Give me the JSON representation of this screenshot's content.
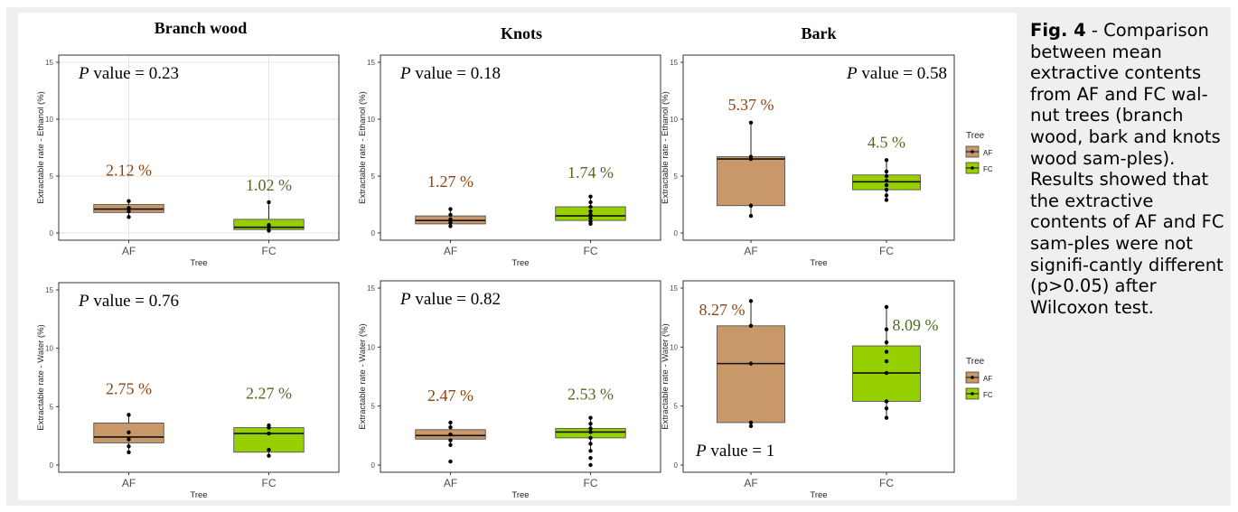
{
  "caption": {
    "label": "Fig. 4",
    "text": " - Comparison between mean extractive contents from AF and FC wal-nut trees (branch wood, bark and knots wood sam-ples). Results showed that the extractive contents of AF and FC sam-ples were not signifi-cantly different (p>0.05) after Wilcoxon test."
  },
  "colors": {
    "AF": "#c8976a",
    "FC": "#97d000",
    "label_AF": "#8b4513",
    "label_FC": "#4e6b1e"
  },
  "chart_data": [
    {
      "type": "box",
      "title": "Branch wood",
      "ylabel": "Extractable rate - Ethanol (%)",
      "xlabel": "Tree",
      "categories": [
        "AF",
        "FC"
      ],
      "ylim": [
        0,
        15
      ],
      "yticks": [
        0,
        5,
        10,
        15
      ],
      "grid": true,
      "p_value_label": "P",
      "p_value_text": " value = 0.23",
      "p_position": "top-left",
      "series": [
        {
          "name": "AF",
          "min": 1.4,
          "q1": 1.8,
          "median": 2.1,
          "q3": 2.5,
          "max": 2.8,
          "points": [
            1.4,
            1.9,
            2.2,
            2.8
          ],
          "mean_label": "2.12 %"
        },
        {
          "name": "FC",
          "min": 0.2,
          "q1": 0.3,
          "median": 0.5,
          "q3": 1.2,
          "max": 2.7,
          "points": [
            0.2,
            0.5,
            0.7,
            2.7
          ],
          "mean_label": "1.02 %"
        }
      ]
    },
    {
      "type": "box",
      "title": "Knots",
      "ylabel": "Extractable rate - Ethanol (%)",
      "xlabel": "Tree",
      "categories": [
        "AF",
        "FC"
      ],
      "ylim": [
        0,
        15
      ],
      "yticks": [
        0,
        5,
        10,
        15
      ],
      "grid": false,
      "p_value_label": "P",
      "p_value_text": " value = 0.18",
      "p_position": "top-left",
      "series": [
        {
          "name": "AF",
          "min": 0.6,
          "q1": 0.8,
          "median": 1.1,
          "q3": 1.5,
          "max": 2.1,
          "points": [
            0.6,
            0.9,
            1.2,
            1.6,
            2.1
          ],
          "mean_label": "1.27 %"
        },
        {
          "name": "FC",
          "min": 0.8,
          "q1": 1.1,
          "median": 1.5,
          "q3": 2.3,
          "max": 3.2,
          "points": [
            0.8,
            1.0,
            1.3,
            1.6,
            1.9,
            2.3,
            2.7,
            3.2
          ],
          "mean_label": "1.74 %"
        }
      ]
    },
    {
      "type": "box",
      "title": "Bark",
      "ylabel": "Extractable rate - Ethanol (%)",
      "xlabel": "Tree",
      "categories": [
        "AF",
        "FC"
      ],
      "ylim": [
        0,
        15
      ],
      "yticks": [
        0,
        5,
        10,
        15
      ],
      "grid": false,
      "p_value_label": "P",
      "p_value_text": " value = 0.58",
      "p_position": "top-right",
      "series": [
        {
          "name": "AF",
          "min": 1.5,
          "q1": 2.4,
          "median": 6.5,
          "q3": 6.7,
          "max": 9.7,
          "points": [
            1.5,
            2.4,
            6.5,
            6.7,
            9.7
          ],
          "mean_label": "5.37 %"
        },
        {
          "name": "FC",
          "min": 2.9,
          "q1": 3.8,
          "median": 4.5,
          "q3": 5.1,
          "max": 6.4,
          "points": [
            2.9,
            3.3,
            3.8,
            4.2,
            4.6,
            5.0,
            5.4,
            6.4
          ],
          "mean_label": "4.5 %"
        }
      ],
      "legend": {
        "title": "Tree",
        "entries": [
          "AF",
          "FC"
        ],
        "position": "right"
      }
    },
    {
      "type": "box",
      "title": "",
      "ylabel": "Extractable rate - Water (%)",
      "xlabel": "Tree",
      "categories": [
        "AF",
        "FC"
      ],
      "ylim": [
        0,
        15
      ],
      "yticks": [
        0,
        5,
        10,
        15
      ],
      "grid": false,
      "p_value_label": "P",
      "p_value_text": " value = 0.76",
      "p_position": "top-left",
      "series": [
        {
          "name": "AF",
          "min": 1.1,
          "q1": 1.9,
          "median": 2.4,
          "q3": 3.6,
          "max": 4.3,
          "points": [
            1.1,
            1.6,
            2.2,
            2.8,
            4.3
          ],
          "mean_label": "2.75 %"
        },
        {
          "name": "FC",
          "min": 0.8,
          "q1": 1.1,
          "median": 2.7,
          "q3": 3.2,
          "max": 3.4,
          "points": [
            0.8,
            1.3,
            2.7,
            3.2,
            3.4
          ],
          "mean_label": "2.27 %"
        }
      ]
    },
    {
      "type": "box",
      "title": "",
      "ylabel": "Extractable rate - Water (%)",
      "xlabel": "Tree",
      "categories": [
        "AF",
        "FC"
      ],
      "ylim": [
        0,
        15
      ],
      "yticks": [
        0,
        5,
        10,
        15
      ],
      "grid": false,
      "p_value_label": "P",
      "p_value_text": " value = 0.82",
      "p_position": "top-left",
      "series": [
        {
          "name": "AF",
          "min": 1.7,
          "q1": 2.2,
          "median": 2.5,
          "q3": 3.0,
          "max": 3.6,
          "points": [
            0.3,
            1.7,
            2.1,
            2.6,
            3.2,
            3.6
          ],
          "mean_label": "2.47 %"
        },
        {
          "name": "FC",
          "min": 1.2,
          "q1": 2.3,
          "median": 2.8,
          "q3": 3.1,
          "max": 4.0,
          "points": [
            0.0,
            0.6,
            1.2,
            1.8,
            2.3,
            2.8,
            3.1,
            3.5,
            4.0
          ],
          "mean_label": "2.53 %"
        }
      ]
    },
    {
      "type": "box",
      "title": "",
      "ylabel": "Extractable rate - Water (%)",
      "xlabel": "Tree",
      "categories": [
        "AF",
        "FC"
      ],
      "ylim": [
        0,
        15
      ],
      "yticks": [
        0,
        5,
        10,
        15
      ],
      "grid": false,
      "p_value_label": "P",
      "p_value_text": " value = 1",
      "p_position": "bottom-left",
      "series": [
        {
          "name": "AF",
          "min": 3.3,
          "q1": 3.6,
          "median": 8.6,
          "q3": 11.8,
          "max": 13.9,
          "points": [
            3.3,
            3.6,
            8.6,
            11.8,
            13.9
          ],
          "mean_label": "8.27 %"
        },
        {
          "name": "FC",
          "min": 4.0,
          "q1": 5.4,
          "median": 7.8,
          "q3": 10.1,
          "max": 13.4,
          "points": [
            4.0,
            4.8,
            5.4,
            7.8,
            8.8,
            9.6,
            10.4,
            11.5,
            13.4
          ],
          "mean_label": "8.09 %"
        }
      ],
      "legend": {
        "title": "Tree",
        "entries": [
          "AF",
          "FC"
        ],
        "position": "right"
      }
    }
  ]
}
